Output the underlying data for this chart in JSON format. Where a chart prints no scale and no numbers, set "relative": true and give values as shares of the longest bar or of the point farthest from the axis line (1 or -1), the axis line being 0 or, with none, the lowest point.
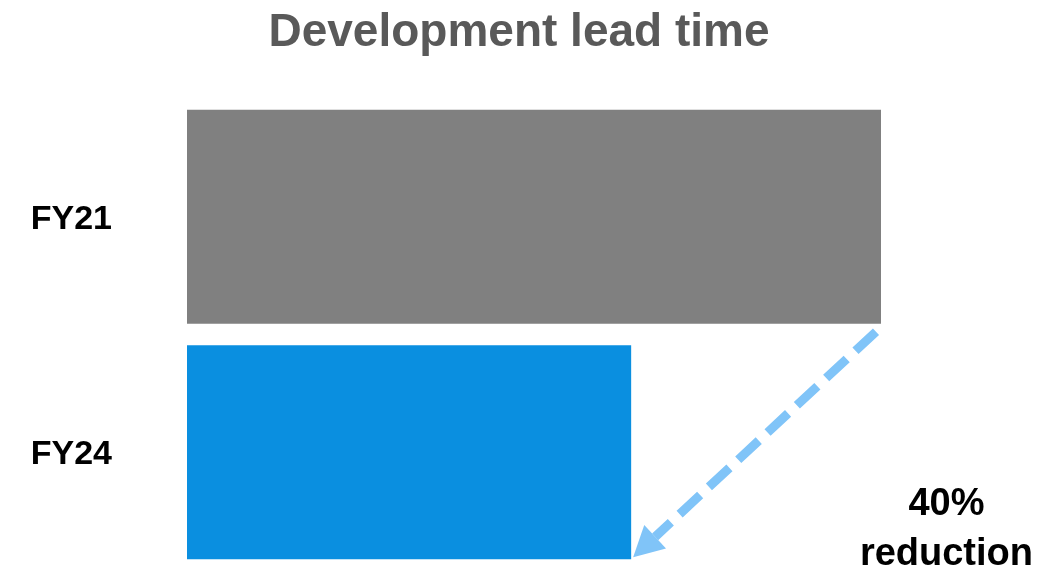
{
  "chart_data": {
    "type": "bar",
    "orientation": "horizontal",
    "relative": true,
    "title": "Development lead time",
    "categories": [
      "FY21",
      "FY24"
    ],
    "values": [
      1,
      0.64
    ],
    "colors": [
      "#808080",
      "#0a8fe0"
    ],
    "annotations": [
      "40%\nreduction"
    ]
  }
}
